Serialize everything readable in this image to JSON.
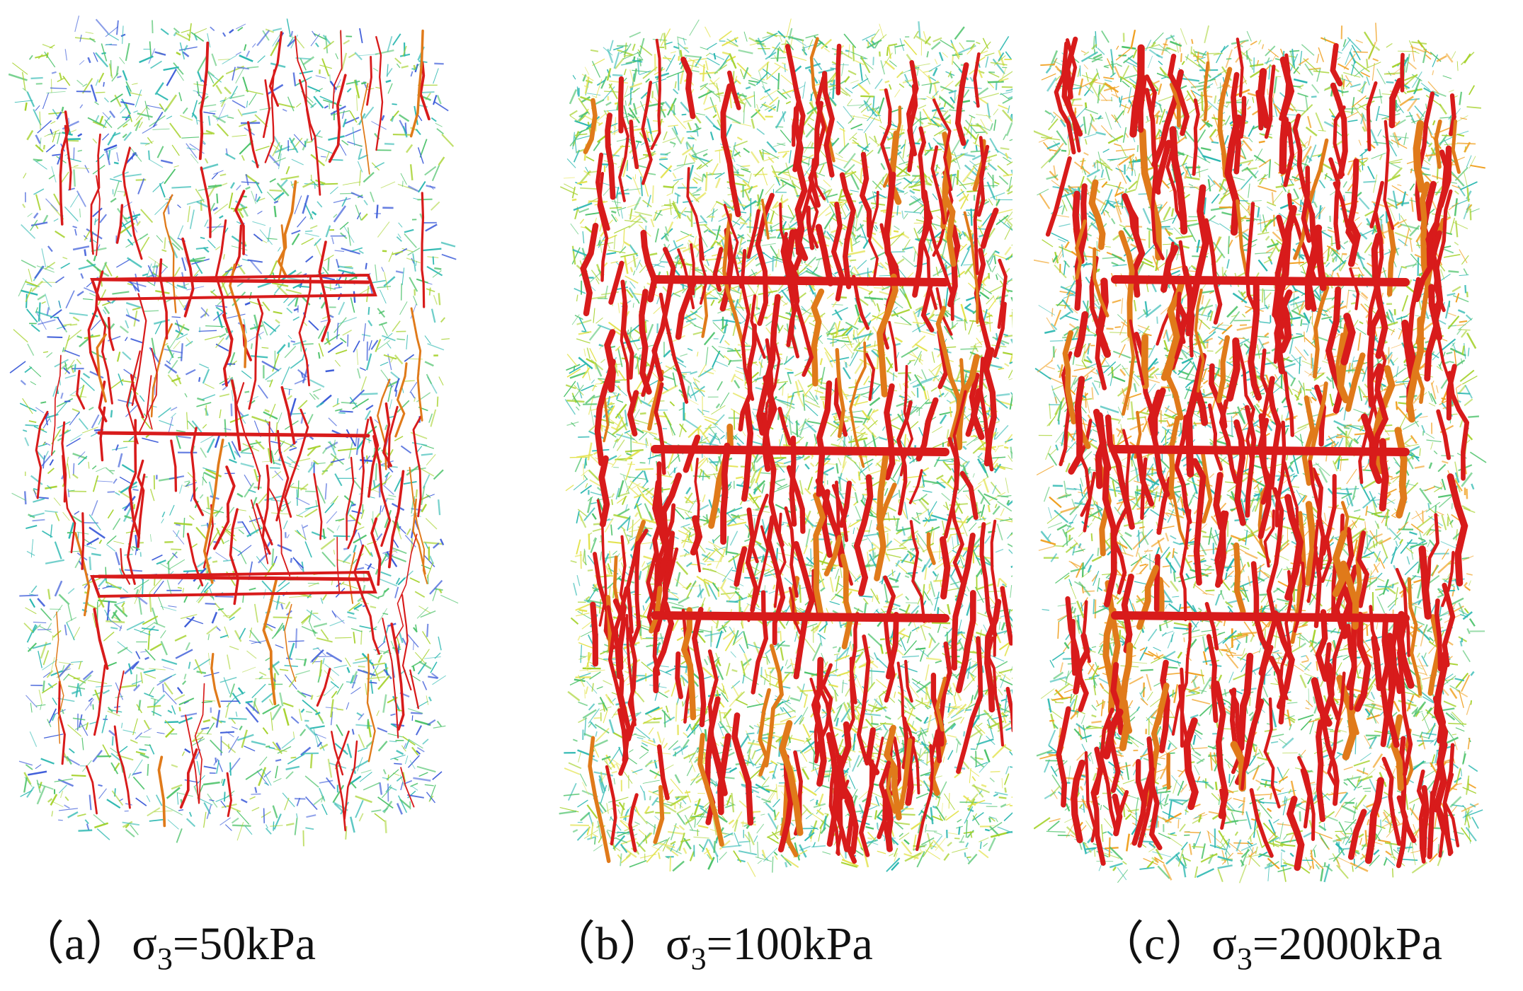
{
  "figure": {
    "panels": [
      {
        "id": "a",
        "label": "（a）",
        "sigma_symbol": "σ",
        "sigma_subscript": "3",
        "condition": "=50kPa",
        "colors": {
          "primary": "#d81b1b",
          "secondary": [
            "#2ab7b0",
            "#4cc26a",
            "#a6d22e",
            "#3a5ad8"
          ]
        },
        "network_density": "sparse"
      },
      {
        "id": "b",
        "label": "（b）",
        "sigma_symbol": "σ",
        "sigma_subscript": "3",
        "condition": "=100kPa",
        "colors": {
          "primary": "#d81b1b",
          "secondary": [
            "#2ab7b0",
            "#4cc26a",
            "#a6d22e",
            "#e2e24a"
          ]
        },
        "network_density": "dense"
      },
      {
        "id": "c",
        "label": "（c）",
        "sigma_symbol": "σ",
        "sigma_subscript": "3",
        "condition": "=2000kPa",
        "colors": {
          "primary": "#d81b1b",
          "secondary": [
            "#2ab7b0",
            "#4cc26a",
            "#a6d22e",
            "#f0a020"
          ]
        },
        "network_density": "very dense"
      }
    ]
  }
}
